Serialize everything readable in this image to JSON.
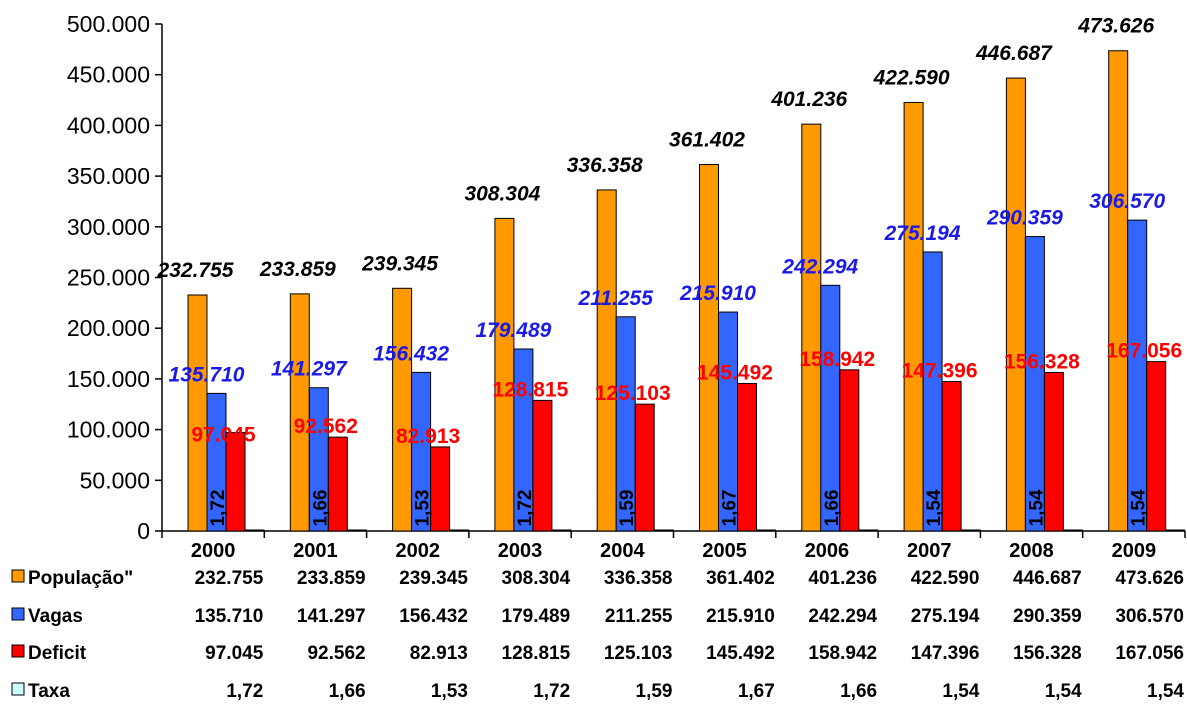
{
  "chart_data": {
    "type": "bar",
    "categories": [
      "2000",
      "2001",
      "2002",
      "2003",
      "2004",
      "2005",
      "2006",
      "2007",
      "2008",
      "2009"
    ],
    "series": [
      {
        "name": "População\"",
        "color": "#FF9900",
        "label_color": "#000000",
        "values": [
          232755,
          233859,
          239345,
          308304,
          336358,
          361402,
          401236,
          422590,
          446687,
          473626
        ],
        "labels": [
          "232.755",
          "233.859",
          "239.345",
          "308.304",
          "336.358",
          "361.402",
          "401.236",
          "422.590",
          "446.687",
          "473.626"
        ]
      },
      {
        "name": "Vagas",
        "color": "#3366FF",
        "label_color": "#1A1AE6",
        "values": [
          135710,
          141297,
          156432,
          179489,
          211255,
          215910,
          242294,
          275194,
          290359,
          306570
        ],
        "labels": [
          "135.710",
          "141.297",
          "156.432",
          "179.489",
          "211.255",
          "215.910",
          "242.294",
          "275.194",
          "290.359",
          "306.570"
        ]
      },
      {
        "name": "Deficit",
        "color": "#FF0000",
        "label_color": "#FF0000",
        "values": [
          97045,
          92562,
          82913,
          128815,
          125103,
          145492,
          158942,
          147396,
          156328,
          167056
        ],
        "labels": [
          "97.045",
          "92.562",
          "82.913",
          "128.815",
          "125.103",
          "145.492",
          "158.942",
          "147.396",
          "156.328",
          "167.056"
        ]
      },
      {
        "name": "Taxa",
        "color": "#CCFFFF",
        "label_color": "#000000",
        "values": [
          1.72,
          1.66,
          1.53,
          1.72,
          1.59,
          1.67,
          1.66,
          1.54,
          1.54,
          1.54
        ],
        "labels": [
          "1,72",
          "1,66",
          "1,53",
          "1,72",
          "1,59",
          "1,67",
          "1,66",
          "1,54",
          "1,54",
          "1,54"
        ]
      }
    ],
    "ylim": [
      0,
      500000
    ],
    "yticks": [
      0,
      50000,
      100000,
      150000,
      200000,
      250000,
      300000,
      350000,
      400000,
      450000,
      500000
    ],
    "ytick_labels": [
      "0",
      "50.000",
      "100.000",
      "150.000",
      "200.000",
      "250.000",
      "300.000",
      "350.000",
      "400.000",
      "450.000",
      "500.000"
    ],
    "grid": false,
    "legend": "data-table-below",
    "title": "",
    "xlabel": "",
    "ylabel": ""
  }
}
